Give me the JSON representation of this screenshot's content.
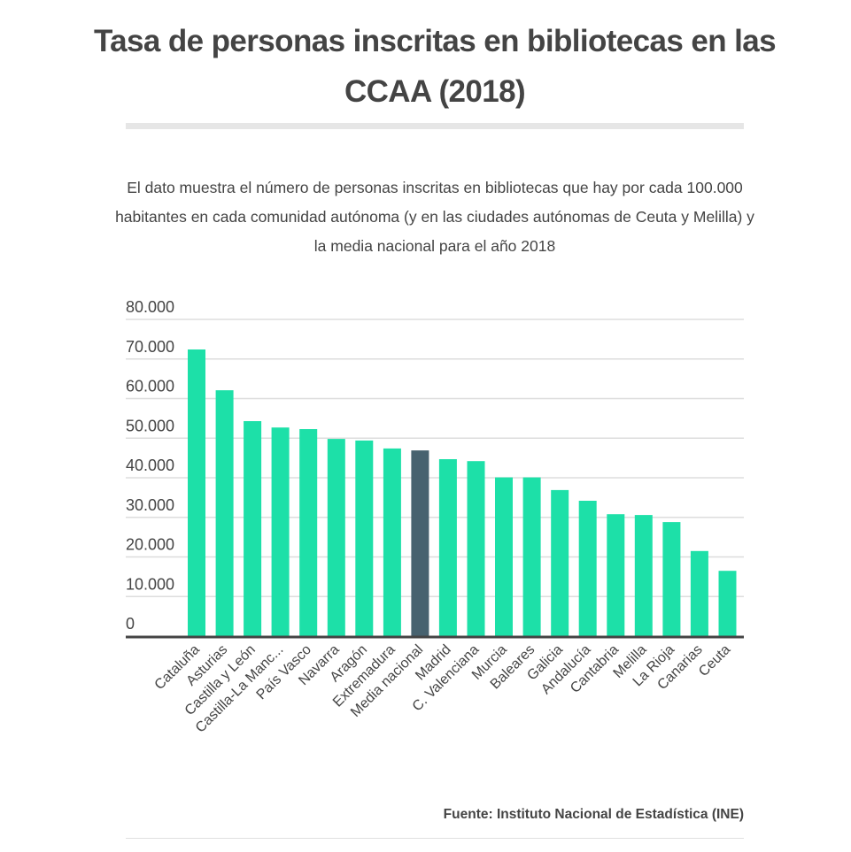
{
  "header": {
    "title": "Tasa de personas inscritas en bibliotecas en las CCAA (2018)",
    "subtitle": "El dato muestra el número de personas inscritas en bibliotecas que hay por cada 100.000 habitantes en cada comunidad autónoma (y en las ciudades autónomas de Ceuta y Melilla) y la media nacional para el año 2018"
  },
  "footer": {
    "source": "Fuente: Instituto Nacional de Estadística (INE)"
  },
  "colors": {
    "bar": "#1de0a8",
    "highlight": "#47626f",
    "grid": "#dddddd",
    "axis": "#444444",
    "text": "#444444"
  },
  "chart_data": {
    "type": "bar",
    "title": "Tasa de personas inscritas en bibliotecas en las CCAA (2018)",
    "xlabel": "",
    "ylabel": "",
    "ylim": [
      0,
      80000
    ],
    "yticks": [
      0,
      10000,
      20000,
      30000,
      40000,
      50000,
      60000,
      70000,
      80000
    ],
    "ytick_labels": [
      "0",
      "10.000",
      "20.000",
      "30.000",
      "40.000",
      "50.000",
      "60.000",
      "70.000",
      "80.000"
    ],
    "grid": true,
    "legend": "none",
    "highlight_category": "Media nacional",
    "categories": [
      "Cataluña",
      "Asturias",
      "Castilla y León",
      "Castilla-La Manc...",
      "País Vasco",
      "Navarra",
      "Aragón",
      "Extremadura",
      "Media nacional",
      "Madrid",
      "C. Valenciana",
      "Murcia",
      "Baleares",
      "Galicia",
      "Andalucía",
      "Cantabria",
      "Melilla",
      "La Rioja",
      "Canarias",
      "Ceuta"
    ],
    "values": [
      72400,
      62100,
      54300,
      52700,
      52300,
      49800,
      49400,
      47400,
      46900,
      44700,
      44200,
      40100,
      40100,
      36900,
      34200,
      30800,
      30600,
      28800,
      21500,
      16500
    ]
  }
}
